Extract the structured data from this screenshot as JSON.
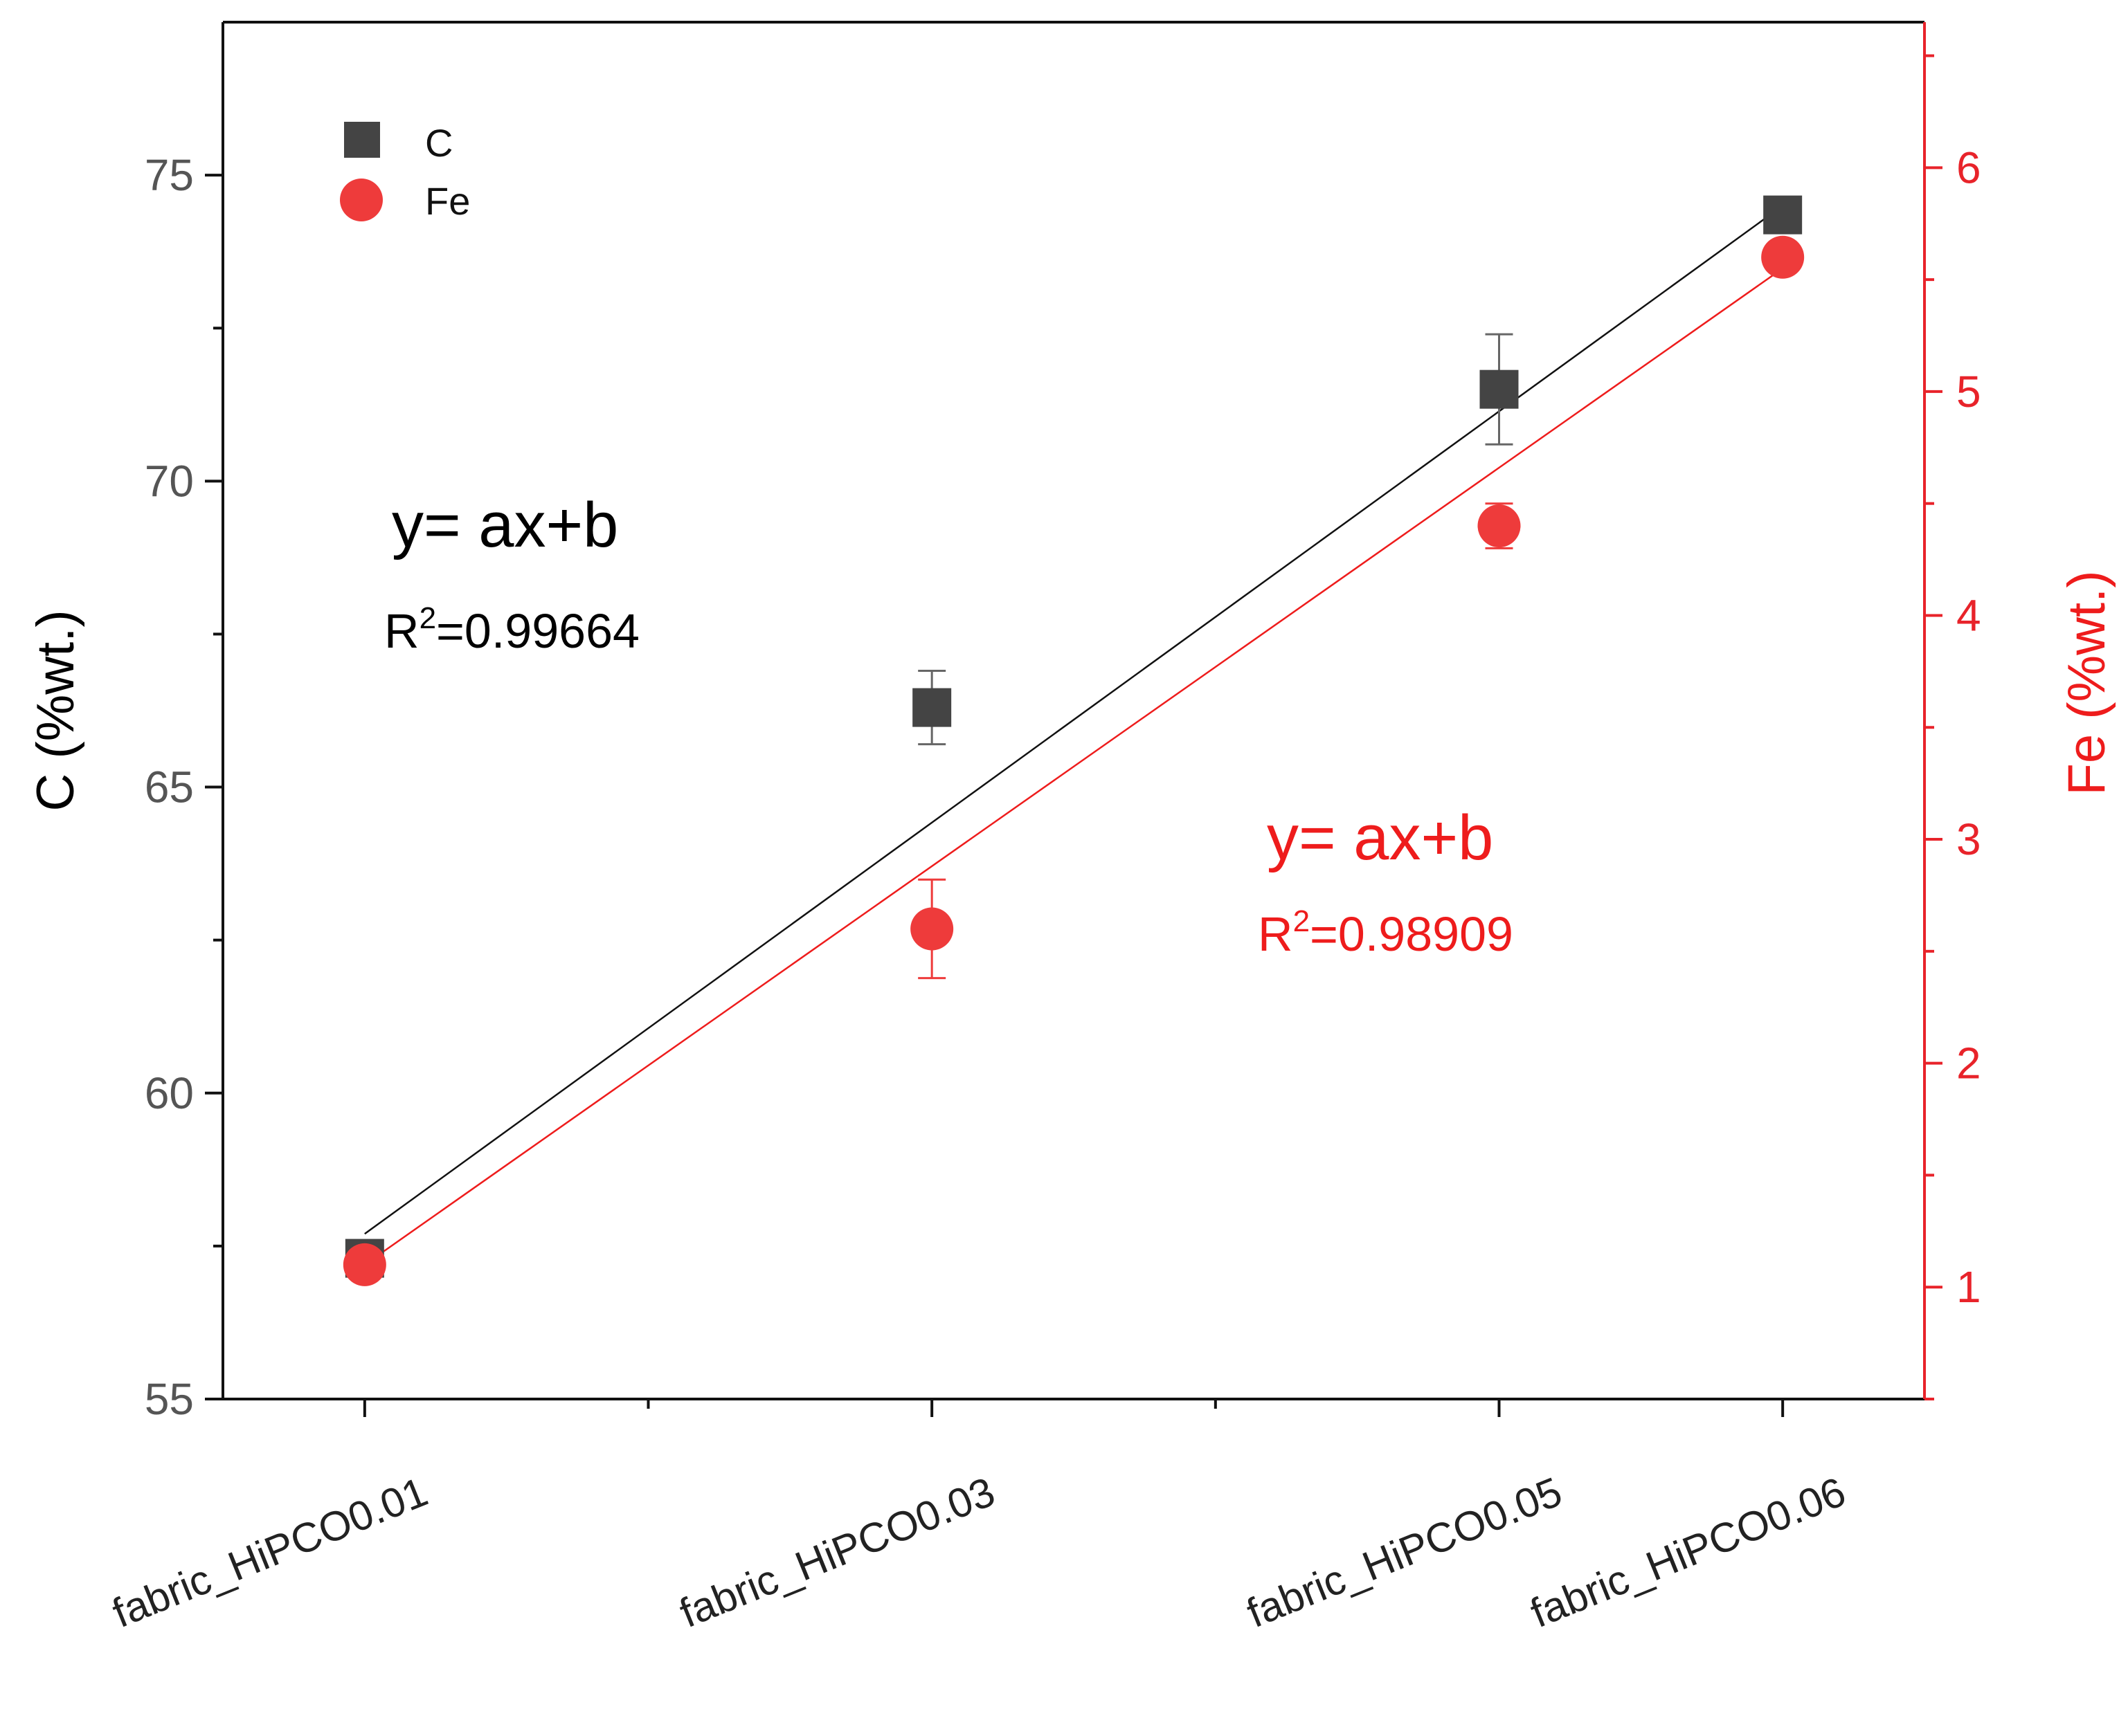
{
  "chart_data": {
    "type": "scatter",
    "categories": [
      "fabric_HiPCO0.01",
      "fabric_HiPCO0.03",
      "fabric_HiPCO0.05",
      "fabric_HiPCO0.06"
    ],
    "x_positions": [
      0.01,
      0.03,
      0.05,
      0.06
    ],
    "xlim": [
      0.005,
      0.065
    ],
    "series": [
      {
        "name": "C",
        "axis": "left",
        "marker": "square",
        "color": "#444444",
        "values": [
          57.3,
          66.3,
          71.5,
          74.35
        ],
        "errors": [
          0.25,
          0.6,
          0.9,
          0.25
        ],
        "fit": {
          "equation": "y= ax+b",
          "r2_label": "R",
          "r2_sup": "2",
          "r2_value": "=0.99664",
          "start": 57.7,
          "end": 74.5,
          "color": "#111111"
        }
      },
      {
        "name": "Fe",
        "axis": "right",
        "marker": "circle",
        "color": "#ee3b3b",
        "values": [
          1.1,
          2.6,
          4.4,
          5.6
        ],
        "errors": [
          0.05,
          0.22,
          0.1,
          0.05
        ],
        "fit": {
          "equation": "y= ax+b",
          "r2_label": "R",
          "r2_sup": "2",
          "r2_value": "=0.98909",
          "start": 1.1,
          "end": 5.55,
          "color": "#ee1c1c"
        }
      }
    ],
    "y_left": {
      "label": "C (%wt.)",
      "lim": [
        55,
        77.5
      ],
      "ticks": [
        55,
        60,
        65,
        70,
        75
      ],
      "color": "#000000"
    },
    "y_right": {
      "label": "Fe (%wt.)",
      "lim": [
        0.5,
        6.65
      ],
      "ticks": [
        1,
        2,
        3,
        4,
        5,
        6
      ],
      "color": "#ee1c1c"
    },
    "legend": {
      "position": "top-left",
      "items": [
        "C",
        "Fe"
      ]
    }
  }
}
